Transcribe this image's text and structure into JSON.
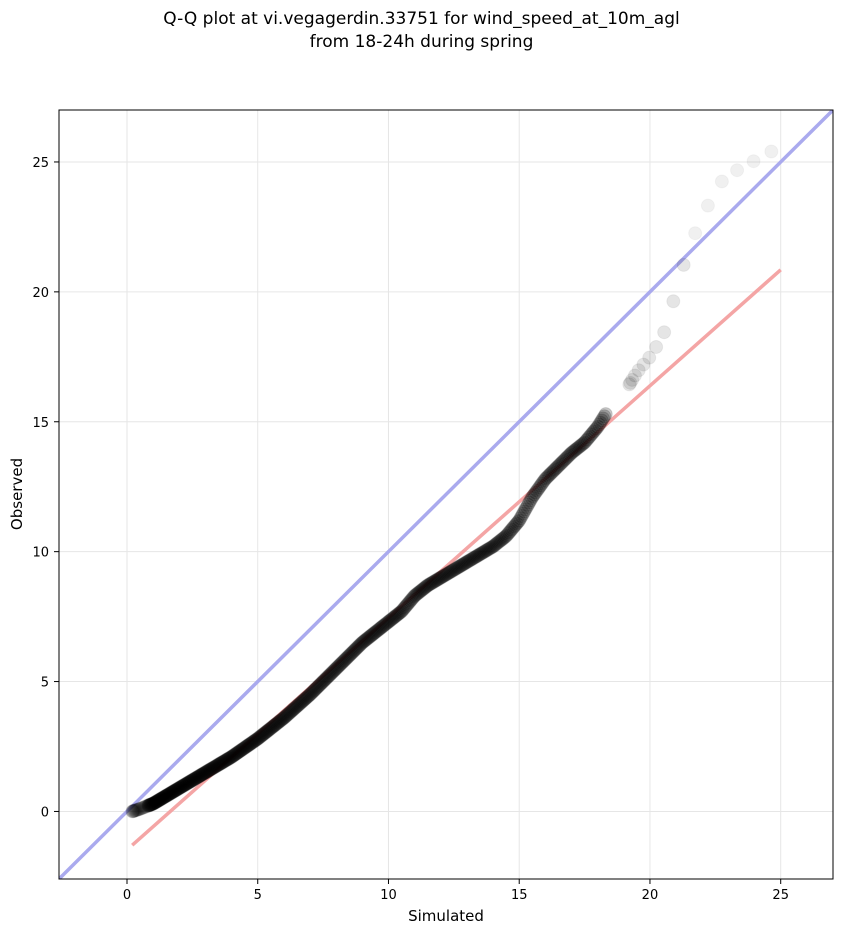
{
  "chart_data": {
    "type": "scatter",
    "title": "Q-Q plot at vi.vegagerdin.33751 for wind_speed_at_10m_agl",
    "subtitle": "from 18-24h during spring",
    "xlabel": "Simulated",
    "ylabel": "Observed",
    "xlim": [
      -2.6,
      27.0
    ],
    "ylim": [
      -2.6,
      27.0
    ],
    "xticks": [
      0,
      5,
      10,
      15,
      20,
      25
    ],
    "yticks": [
      0,
      5,
      10,
      15,
      20,
      25
    ],
    "xtick_labels": [
      "0",
      "5",
      "10",
      "15",
      "20",
      "25"
    ],
    "ytick_labels": [
      "0",
      "5",
      "10",
      "15",
      "20",
      "25"
    ],
    "grid": true,
    "reference_lines": [
      {
        "kind": "identity",
        "color": "#aaaaee",
        "x": [
          -2.6,
          27.0
        ],
        "y": [
          -2.6,
          27.0
        ]
      },
      {
        "kind": "fit",
        "color": "#f4a5a5",
        "x": [
          0.2,
          25.0
        ],
        "y": [
          -1.3,
          20.85
        ]
      }
    ],
    "quantile_anchors": {
      "simulated": [
        0.2,
        0.5,
        1.0,
        2.0,
        3.0,
        4.0,
        5.0,
        6.0,
        7.0,
        8.0,
        9.0,
        10.0,
        10.5,
        11.0,
        11.5,
        12.0,
        12.5,
        13.0,
        13.5,
        14.0,
        14.5,
        15.0,
        15.5,
        16.0,
        16.5,
        17.0,
        17.5,
        18.0,
        18.5,
        19.0,
        19.5,
        20.0,
        20.5,
        21.0,
        21.5,
        22.0,
        22.5,
        23.0,
        25.0
      ],
      "observed": [
        0.0,
        0.1,
        0.3,
        0.9,
        1.5,
        2.1,
        2.8,
        3.6,
        4.5,
        5.5,
        6.5,
        7.3,
        7.7,
        8.3,
        8.7,
        9.0,
        9.3,
        9.6,
        9.9,
        10.2,
        10.6,
        11.2,
        12.1,
        12.8,
        13.3,
        13.8,
        14.2,
        14.8,
        15.6,
        16.1,
        16.9,
        17.5,
        18.3,
        20.0,
        21.8,
        22.8,
        24.0,
        24.5,
        25.6
      ]
    },
    "sample_count": 500
  }
}
